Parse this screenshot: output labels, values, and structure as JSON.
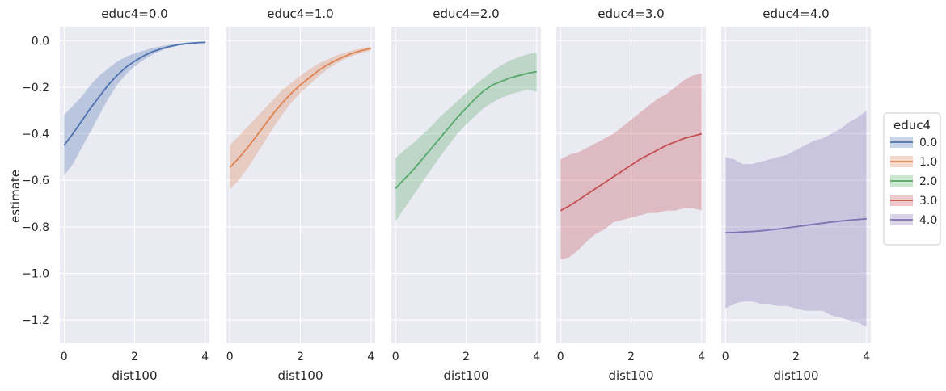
{
  "chart_data": {
    "type": "line",
    "facet_variable": "educ4",
    "xlabel": "dist100",
    "ylabel": "estimate",
    "xlim": [
      -0.12,
      4.12
    ],
    "ylim": [
      -1.3,
      0.06
    ],
    "xticks": [
      0,
      2,
      4
    ],
    "yticks": [
      0.0,
      -0.2,
      -0.4,
      -0.6,
      -0.8,
      -1.0,
      -1.2
    ],
    "x": [
      0,
      0.25,
      0.5,
      0.75,
      1.0,
      1.25,
      1.5,
      1.75,
      2.0,
      2.25,
      2.5,
      2.75,
      3.0,
      3.25,
      3.5,
      3.75,
      4.0
    ],
    "legend": {
      "title": "educ4",
      "position": "center-right"
    },
    "panels": [
      {
        "title": "educ4=0.0",
        "series": "0.0",
        "color": "#4c72b0",
        "estimate": [
          -0.45,
          -0.4,
          -0.345,
          -0.29,
          -0.24,
          -0.19,
          -0.15,
          -0.115,
          -0.088,
          -0.066,
          -0.048,
          -0.035,
          -0.025,
          -0.017,
          -0.012,
          -0.009,
          -0.007
        ],
        "lower": [
          -0.58,
          -0.53,
          -0.46,
          -0.39,
          -0.32,
          -0.25,
          -0.19,
          -0.145,
          -0.11,
          -0.083,
          -0.06,
          -0.043,
          -0.03,
          -0.021,
          -0.015,
          -0.011,
          -0.009
        ],
        "upper": [
          -0.32,
          -0.28,
          -0.24,
          -0.19,
          -0.15,
          -0.12,
          -0.09,
          -0.07,
          -0.055,
          -0.043,
          -0.032,
          -0.024,
          -0.017,
          -0.012,
          -0.008,
          -0.006,
          -0.005
        ]
      },
      {
        "title": "educ4=1.0",
        "series": "1.0",
        "color": "#dd8452",
        "estimate": [
          -0.545,
          -0.505,
          -0.46,
          -0.41,
          -0.36,
          -0.31,
          -0.265,
          -0.225,
          -0.19,
          -0.16,
          -0.13,
          -0.105,
          -0.085,
          -0.068,
          -0.053,
          -0.042,
          -0.033
        ],
        "lower": [
          -0.64,
          -0.6,
          -0.55,
          -0.49,
          -0.43,
          -0.37,
          -0.315,
          -0.265,
          -0.225,
          -0.19,
          -0.155,
          -0.125,
          -0.1,
          -0.08,
          -0.064,
          -0.052,
          -0.043
        ],
        "upper": [
          -0.45,
          -0.41,
          -0.37,
          -0.33,
          -0.29,
          -0.25,
          -0.21,
          -0.18,
          -0.15,
          -0.125,
          -0.1,
          -0.082,
          -0.065,
          -0.052,
          -0.041,
          -0.032,
          -0.025
        ]
      },
      {
        "title": "educ4=2.0",
        "series": "2.0",
        "color": "#55a868",
        "estimate": [
          -0.635,
          -0.595,
          -0.555,
          -0.51,
          -0.465,
          -0.42,
          -0.375,
          -0.33,
          -0.29,
          -0.25,
          -0.215,
          -0.19,
          -0.175,
          -0.16,
          -0.15,
          -0.14,
          -0.133
        ],
        "lower": [
          -0.775,
          -0.72,
          -0.665,
          -0.61,
          -0.555,
          -0.5,
          -0.45,
          -0.4,
          -0.36,
          -0.325,
          -0.29,
          -0.265,
          -0.245,
          -0.23,
          -0.22,
          -0.21,
          -0.22
        ],
        "upper": [
          -0.505,
          -0.47,
          -0.44,
          -0.405,
          -0.37,
          -0.33,
          -0.295,
          -0.26,
          -0.225,
          -0.19,
          -0.16,
          -0.13,
          -0.105,
          -0.085,
          -0.07,
          -0.058,
          -0.05
        ]
      },
      {
        "title": "educ4=3.0",
        "series": "3.0",
        "color": "#c44e52",
        "estimate": [
          -0.73,
          -0.71,
          -0.685,
          -0.66,
          -0.635,
          -0.61,
          -0.585,
          -0.56,
          -0.535,
          -0.51,
          -0.49,
          -0.47,
          -0.45,
          -0.435,
          -0.42,
          -0.41,
          -0.4
        ],
        "lower": [
          -0.94,
          -0.93,
          -0.9,
          -0.86,
          -0.83,
          -0.81,
          -0.78,
          -0.77,
          -0.76,
          -0.75,
          -0.74,
          -0.74,
          -0.73,
          -0.73,
          -0.72,
          -0.72,
          -0.73
        ],
        "upper": [
          -0.51,
          -0.49,
          -0.48,
          -0.46,
          -0.44,
          -0.42,
          -0.4,
          -0.37,
          -0.34,
          -0.31,
          -0.28,
          -0.25,
          -0.23,
          -0.2,
          -0.17,
          -0.15,
          -0.14
        ]
      },
      {
        "title": "educ4=4.0",
        "series": "4.0",
        "color": "#8172b3",
        "estimate": [
          -0.825,
          -0.824,
          -0.822,
          -0.82,
          -0.817,
          -0.813,
          -0.809,
          -0.804,
          -0.799,
          -0.794,
          -0.789,
          -0.784,
          -0.779,
          -0.775,
          -0.771,
          -0.768,
          -0.765
        ],
        "lower": [
          -1.15,
          -1.13,
          -1.12,
          -1.12,
          -1.13,
          -1.13,
          -1.14,
          -1.14,
          -1.15,
          -1.16,
          -1.16,
          -1.16,
          -1.18,
          -1.19,
          -1.2,
          -1.21,
          -1.23
        ],
        "upper": [
          -0.5,
          -0.51,
          -0.53,
          -0.53,
          -0.52,
          -0.51,
          -0.5,
          -0.49,
          -0.47,
          -0.45,
          -0.43,
          -0.42,
          -0.4,
          -0.38,
          -0.35,
          -0.33,
          -0.3
        ]
      }
    ]
  }
}
